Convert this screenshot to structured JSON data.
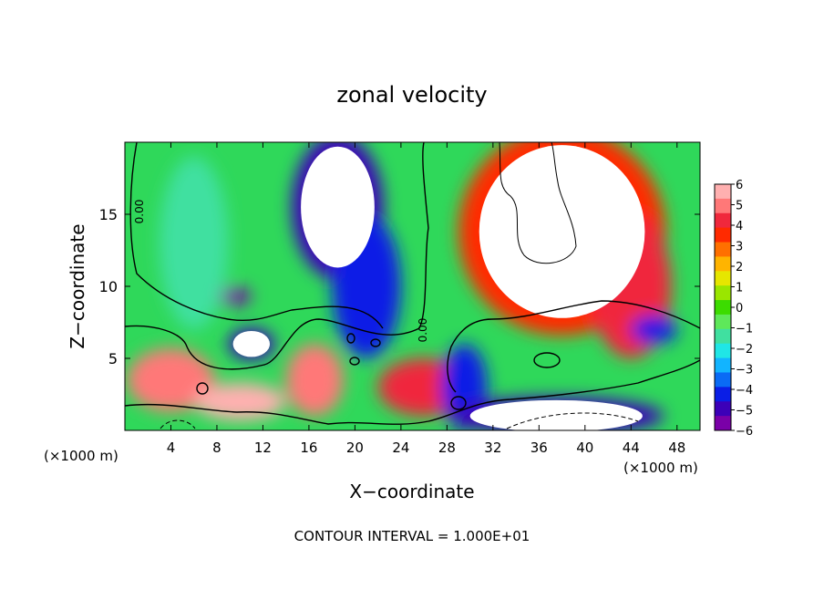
{
  "chart_data": {
    "type": "heatmap",
    "title": "zonal velocity",
    "xlabel": "X−coordinate",
    "ylabel": "Z−coordinate",
    "x_unit_left": "(×1000 m)",
    "x_unit_right": "(×1000 m)",
    "footer": "CONTOUR INTERVAL = 1.000E+01",
    "xlim": [
      0,
      50
    ],
    "ylim": [
      0,
      20
    ],
    "xticks": [
      4,
      8,
      12,
      16,
      20,
      24,
      28,
      32,
      36,
      40,
      44,
      48
    ],
    "yticks": [
      5,
      10,
      15
    ],
    "contour_labels": [
      "0.00",
      "0.00"
    ],
    "colorbar": {
      "vmin": -6,
      "vmax": 6,
      "ticks": [
        "6",
        "5",
        "4",
        "3",
        "2",
        "1",
        "0",
        "−1",
        "−2",
        "−3",
        "−4",
        "−5",
        "−6"
      ],
      "colors": [
        "#7a00a8",
        "#3c00b8",
        "#0a1ee6",
        "#0a6bf5",
        "#12b4ff",
        "#20e6e6",
        "#40e0a0",
        "#5ee85a",
        "#3cdc00",
        "#9ae600",
        "#e6e600",
        "#ffb400",
        "#ff7000",
        "#ff2a00",
        "#f0283c",
        "#ff7878",
        "#ffb0b0"
      ]
    },
    "features": [
      {
        "x": 18.5,
        "z": 15.5,
        "rx": 3.2,
        "rz": 4.2,
        "value": -7,
        "note": "white (beyond −6)"
      },
      {
        "x": 9.5,
        "z": 9.3,
        "rx": 1.5,
        "rz": 0.6,
        "value": -5.5
      },
      {
        "x": 11,
        "z": 6,
        "rx": 1.6,
        "rz": 0.9,
        "value": -7
      },
      {
        "x": 38,
        "z": 13.8,
        "rx": 7.2,
        "rz": 6.0,
        "value": 7,
        "note": "white (beyond 6)"
      },
      {
        "x": 44,
        "z": 10,
        "rx": 3.5,
        "rz": 5.0,
        "value": 4
      },
      {
        "x": 4,
        "z": 3.5,
        "rx": 3.8,
        "rz": 2.2,
        "value": 5
      },
      {
        "x": 10,
        "z": 2,
        "rx": 4.0,
        "rz": 1.3,
        "value": 6
      },
      {
        "x": 16.5,
        "z": 3.5,
        "rx": 2.5,
        "rz": 2.5,
        "value": 5
      },
      {
        "x": 26,
        "z": 3,
        "rx": 4.0,
        "rz": 2.0,
        "value": 4
      },
      {
        "x": 29.5,
        "z": 3.0,
        "rx": 2.0,
        "rz": 3.0,
        "value": -4
      },
      {
        "x": 37.5,
        "z": 1.0,
        "rx": 7.5,
        "rz": 1.1,
        "value": -7,
        "note": "white (beyond −6)"
      },
      {
        "x": 46,
        "z": 7,
        "rx": 2.0,
        "rz": 1.0,
        "value": -4
      },
      {
        "x": 6,
        "z": 13,
        "rx": 3.0,
        "rz": 6.0,
        "value": -1.5
      },
      {
        "x": 21,
        "z": 10,
        "rx": 3.0,
        "rz": 5.0,
        "value": -4.5
      }
    ]
  }
}
